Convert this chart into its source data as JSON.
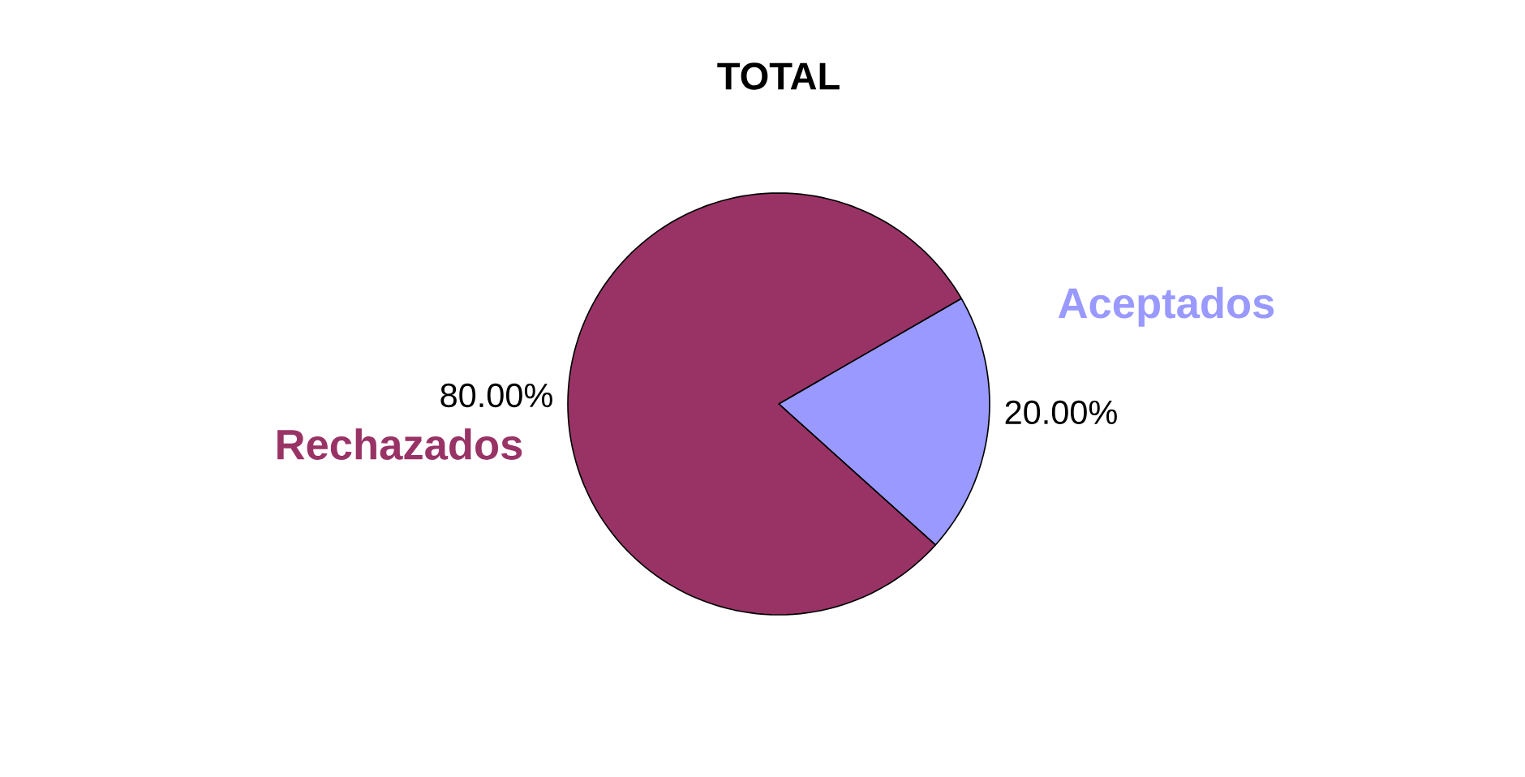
{
  "chart_data": {
    "type": "pie",
    "title": "TOTAL",
    "categories": [
      "Aceptados",
      "Rechazados"
    ],
    "values": [
      20,
      80
    ],
    "colors": [
      "#9999ff",
      "#993366"
    ],
    "value_labels": [
      "20.00%",
      "80.00%"
    ]
  }
}
